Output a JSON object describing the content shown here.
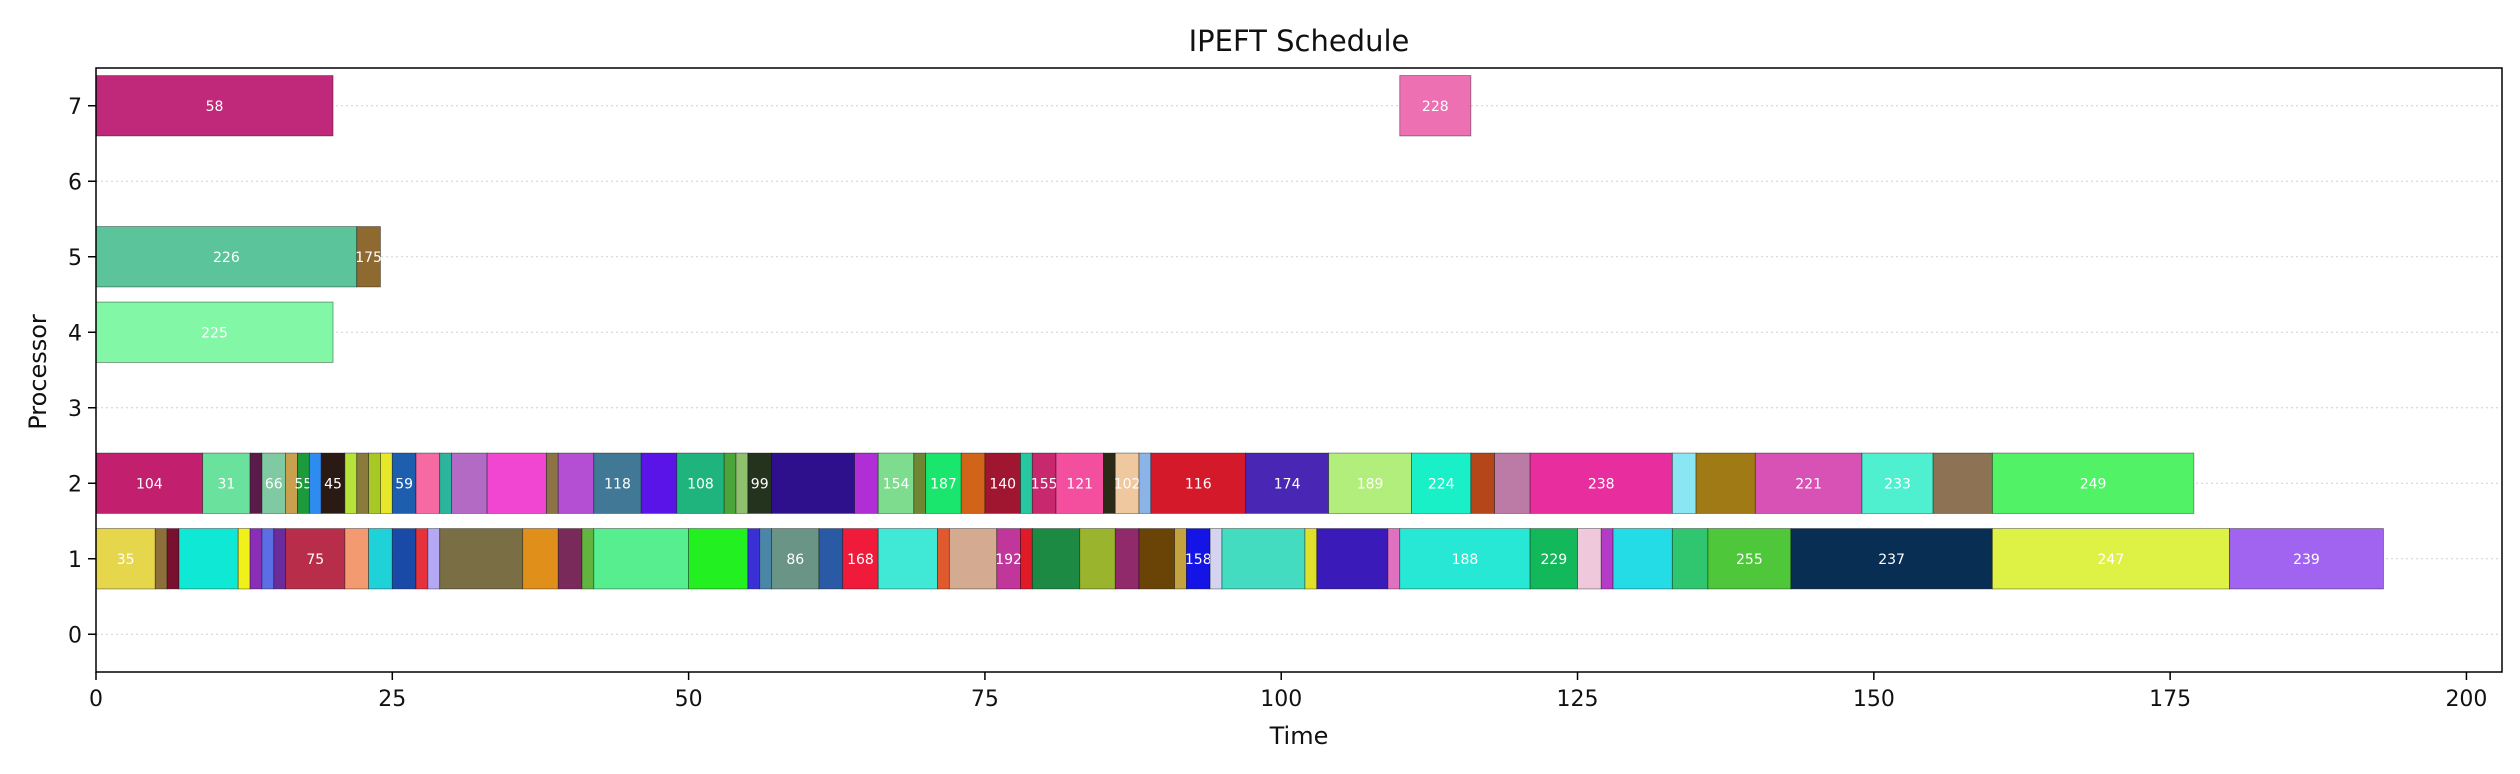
{
  "chart_data": {
    "type": "gantt",
    "title": "IPEFT Schedule",
    "xlabel": "Time",
    "ylabel": "Processor",
    "xlim": [
      0,
      203
    ],
    "ylim": [
      -0.5,
      7.5
    ],
    "xticks": [
      "0",
      "25",
      "50",
      "75",
      "100",
      "125",
      "150",
      "175",
      "200"
    ],
    "yticks": [
      "0",
      "1",
      "2",
      "3",
      "4",
      "5",
      "6",
      "7"
    ],
    "grid": "horizontal dotted",
    "tasks": [
      {
        "processor": 7,
        "start": 0,
        "end": 20,
        "label": "58",
        "color": "#c0287a"
      },
      {
        "processor": 7,
        "start": 110,
        "end": 116,
        "label": "228",
        "color": "#ec70b2"
      },
      {
        "processor": 5,
        "start": 0,
        "end": 22,
        "label": "226",
        "color": "#5bc49a"
      },
      {
        "processor": 5,
        "start": 22,
        "end": 24,
        "label": "175",
        "color": "#8e6930"
      },
      {
        "processor": 4,
        "start": 0,
        "end": 20,
        "label": "225",
        "color": "#82f7a6"
      },
      {
        "processor": 2,
        "start": 0,
        "end": 9,
        "label": "104",
        "color": "#c2206e"
      },
      {
        "processor": 2,
        "start": 9,
        "end": 13,
        "label": "31",
        "color": "#6be19e"
      },
      {
        "processor": 2,
        "start": 13,
        "end": 14,
        "label": "",
        "color": "#5a1a4a"
      },
      {
        "processor": 2,
        "start": 14,
        "end": 16,
        "label": "66",
        "color": "#7fc9a3"
      },
      {
        "processor": 2,
        "start": 16,
        "end": 17,
        "label": "",
        "color": "#c9a14e"
      },
      {
        "processor": 2,
        "start": 17,
        "end": 18,
        "label": "55",
        "color": "#1c9a3c"
      },
      {
        "processor": 2,
        "start": 18,
        "end": 19,
        "label": "",
        "color": "#2e8bf0"
      },
      {
        "processor": 2,
        "start": 19,
        "end": 21,
        "label": "45",
        "color": "#2b1a14"
      },
      {
        "processor": 2,
        "start": 21,
        "end": 22,
        "label": "",
        "color": "#b6e23a"
      },
      {
        "processor": 2,
        "start": 22,
        "end": 23,
        "label": "",
        "color": "#8a7a3c"
      },
      {
        "processor": 2,
        "start": 23,
        "end": 24,
        "label": "",
        "color": "#a8c826"
      },
      {
        "processor": 2,
        "start": 24,
        "end": 25,
        "label": "",
        "color": "#e7e829"
      },
      {
        "processor": 2,
        "start": 25,
        "end": 27,
        "label": "59",
        "color": "#1d5eae"
      },
      {
        "processor": 2,
        "start": 27,
        "end": 29,
        "label": "",
        "color": "#f56aa2"
      },
      {
        "processor": 2,
        "start": 29,
        "end": 30,
        "label": "",
        "color": "#2ab59c"
      },
      {
        "processor": 2,
        "start": 30,
        "end": 33,
        "label": "",
        "color": "#b36ac4"
      },
      {
        "processor": 2,
        "start": 33,
        "end": 38,
        "label": "",
        "color": "#f046d2"
      },
      {
        "processor": 2,
        "start": 38,
        "end": 39,
        "label": "",
        "color": "#8c7346"
      },
      {
        "processor": 2,
        "start": 39,
        "end": 42,
        "label": "",
        "color": "#b44ed2"
      },
      {
        "processor": 2,
        "start": 42,
        "end": 46,
        "label": "118",
        "color": "#417895"
      },
      {
        "processor": 2,
        "start": 46,
        "end": 49,
        "label": "",
        "color": "#5a14e8"
      },
      {
        "processor": 2,
        "start": 49,
        "end": 53,
        "label": "108",
        "color": "#1fb47e"
      },
      {
        "processor": 2,
        "start": 53,
        "end": 54,
        "label": "",
        "color": "#4aa63a"
      },
      {
        "processor": 2,
        "start": 54,
        "end": 55,
        "label": "",
        "color": "#8fc06e"
      },
      {
        "processor": 2,
        "start": 55,
        "end": 57,
        "label": "99",
        "color": "#24331e"
      },
      {
        "processor": 2,
        "start": 57,
        "end": 64,
        "label": "",
        "color": "#2e0f8c"
      },
      {
        "processor": 2,
        "start": 64,
        "end": 66,
        "label": "",
        "color": "#b02ed6"
      },
      {
        "processor": 2,
        "start": 66,
        "end": 69,
        "label": "154",
        "color": "#7ddc8e"
      },
      {
        "processor": 2,
        "start": 69,
        "end": 70,
        "label": "",
        "color": "#6e8732"
      },
      {
        "processor": 2,
        "start": 70,
        "end": 73,
        "label": "187",
        "color": "#1ae66e"
      },
      {
        "processor": 2,
        "start": 73,
        "end": 75,
        "label": "",
        "color": "#d2641a"
      },
      {
        "processor": 2,
        "start": 75,
        "end": 78,
        "label": "140",
        "color": "#a01630"
      },
      {
        "processor": 2,
        "start": 78,
        "end": 79,
        "label": "",
        "color": "#26c8a0"
      },
      {
        "processor": 2,
        "start": 79,
        "end": 81,
        "label": "155",
        "color": "#c8286e"
      },
      {
        "processor": 2,
        "start": 81,
        "end": 85,
        "label": "121",
        "color": "#f44e9e"
      },
      {
        "processor": 2,
        "start": 85,
        "end": 86,
        "label": "",
        "color": "#2a2a16"
      },
      {
        "processor": 2,
        "start": 86,
        "end": 88,
        "label": "102",
        "color": "#f0c8a0"
      },
      {
        "processor": 2,
        "start": 88,
        "end": 89,
        "label": "",
        "color": "#8ab4e8"
      },
      {
        "processor": 2,
        "start": 89,
        "end": 97,
        "label": "116",
        "color": "#d41a2a"
      },
      {
        "processor": 2,
        "start": 97,
        "end": 104,
        "label": "174",
        "color": "#4a26b4"
      },
      {
        "processor": 2,
        "start": 104,
        "end": 111,
        "label": "189",
        "color": "#b2ee7c"
      },
      {
        "processor": 2,
        "start": 111,
        "end": 116,
        "label": "224",
        "color": "#1af0c8"
      },
      {
        "processor": 2,
        "start": 116,
        "end": 118,
        "label": "",
        "color": "#b4461a"
      },
      {
        "processor": 2,
        "start": 118,
        "end": 121,
        "label": "",
        "color": "#bc7aa6"
      },
      {
        "processor": 2,
        "start": 121,
        "end": 133,
        "label": "238",
        "color": "#e82e9e"
      },
      {
        "processor": 2,
        "start": 133,
        "end": 135,
        "label": "",
        "color": "#8ae6f2"
      },
      {
        "processor": 2,
        "start": 135,
        "end": 140,
        "label": "",
        "color": "#a07a14"
      },
      {
        "processor": 2,
        "start": 140,
        "end": 149,
        "label": "221",
        "color": "#d852b6"
      },
      {
        "processor": 2,
        "start": 149,
        "end": 155,
        "label": "233",
        "color": "#4ef0d0"
      },
      {
        "processor": 2,
        "start": 155,
        "end": 160,
        "label": "",
        "color": "#8e7254"
      },
      {
        "processor": 2,
        "start": 160,
        "end": 177,
        "label": "249",
        "color": "#52f266"
      },
      {
        "processor": 1,
        "start": 0,
        "end": 5,
        "label": "35",
        "color": "#e6d64c"
      },
      {
        "processor": 1,
        "start": 5,
        "end": 6,
        "label": "",
        "color": "#8e6e3a"
      },
      {
        "processor": 1,
        "start": 6,
        "end": 7,
        "label": "",
        "color": "#7a1030"
      },
      {
        "processor": 1,
        "start": 7,
        "end": 12,
        "label": "",
        "color": "#0ee8d4"
      },
      {
        "processor": 1,
        "start": 12,
        "end": 13,
        "label": "",
        "color": "#f0f01a"
      },
      {
        "processor": 1,
        "start": 13,
        "end": 14,
        "label": "",
        "color": "#8a2eb8"
      },
      {
        "processor": 1,
        "start": 14,
        "end": 15,
        "label": "",
        "color": "#5c6ee6"
      },
      {
        "processor": 1,
        "start": 15,
        "end": 16,
        "label": "",
        "color": "#6a2c9c"
      },
      {
        "processor": 1,
        "start": 16,
        "end": 21,
        "label": "75",
        "color": "#b82e4a"
      },
      {
        "processor": 1,
        "start": 21,
        "end": 23,
        "label": "",
        "color": "#f49a70"
      },
      {
        "processor": 1,
        "start": 23,
        "end": 25,
        "label": "",
        "color": "#1ed2d8"
      },
      {
        "processor": 1,
        "start": 25,
        "end": 27,
        "label": "",
        "color": "#1a4aa8"
      },
      {
        "processor": 1,
        "start": 27,
        "end": 28,
        "label": "",
        "color": "#e6323c"
      },
      {
        "processor": 1,
        "start": 28,
        "end": 29,
        "label": "",
        "color": "#b4a8f4"
      },
      {
        "processor": 1,
        "start": 29,
        "end": 36,
        "label": "",
        "color": "#7a6e44"
      },
      {
        "processor": 1,
        "start": 36,
        "end": 39,
        "label": "",
        "color": "#e0901a"
      },
      {
        "processor": 1,
        "start": 39,
        "end": 41,
        "label": "",
        "color": "#7a2a5a"
      },
      {
        "processor": 1,
        "start": 41,
        "end": 42,
        "label": "",
        "color": "#62b43e"
      },
      {
        "processor": 1,
        "start": 42,
        "end": 50,
        "label": "",
        "color": "#56ee8e"
      },
      {
        "processor": 1,
        "start": 50,
        "end": 55,
        "label": "",
        "color": "#22f020"
      },
      {
        "processor": 1,
        "start": 55,
        "end": 56,
        "label": "",
        "color": "#3a30d6"
      },
      {
        "processor": 1,
        "start": 56,
        "end": 57,
        "label": "",
        "color": "#4a86a8"
      },
      {
        "processor": 1,
        "start": 57,
        "end": 61,
        "label": "86",
        "color": "#6a9486"
      },
      {
        "processor": 1,
        "start": 61,
        "end": 63,
        "label": "",
        "color": "#2a5aa6"
      },
      {
        "processor": 1,
        "start": 63,
        "end": 66,
        "label": "168",
        "color": "#f01a3a"
      },
      {
        "processor": 1,
        "start": 66,
        "end": 71,
        "label": "",
        "color": "#40e8d6"
      },
      {
        "processor": 1,
        "start": 71,
        "end": 72,
        "label": "",
        "color": "#e05a2e"
      },
      {
        "processor": 1,
        "start": 72,
        "end": 76,
        "label": "",
        "color": "#d4aa90"
      },
      {
        "processor": 1,
        "start": 76,
        "end": 78,
        "label": "192",
        "color": "#c0369a"
      },
      {
        "processor": 1,
        "start": 78,
        "end": 79,
        "label": "",
        "color": "#e01a26"
      },
      {
        "processor": 1,
        "start": 79,
        "end": 83,
        "label": "",
        "color": "#1c8a42"
      },
      {
        "processor": 1,
        "start": 83,
        "end": 86,
        "label": "",
        "color": "#9ab42e"
      },
      {
        "processor": 1,
        "start": 86,
        "end": 88,
        "label": "",
        "color": "#902a6a"
      },
      {
        "processor": 1,
        "start": 88,
        "end": 91,
        "label": "",
        "color": "#6a4406"
      },
      {
        "processor": 1,
        "start": 91,
        "end": 92,
        "label": "",
        "color": "#c4a240"
      },
      {
        "processor": 1,
        "start": 92,
        "end": 94,
        "label": "158",
        "color": "#1414e6"
      },
      {
        "processor": 1,
        "start": 94,
        "end": 95,
        "label": "",
        "color": "#d4d4f0"
      },
      {
        "processor": 1,
        "start": 95,
        "end": 102,
        "label": "",
        "color": "#44dcc0"
      },
      {
        "processor": 1,
        "start": 102,
        "end": 103,
        "label": "",
        "color": "#e0e02a"
      },
      {
        "processor": 1,
        "start": 103,
        "end": 109,
        "label": "",
        "color": "#3a1ab8"
      },
      {
        "processor": 1,
        "start": 109,
        "end": 110,
        "label": "",
        "color": "#e070c0"
      },
      {
        "processor": 1,
        "start": 110,
        "end": 121,
        "label": "188",
        "color": "#26e8d4"
      },
      {
        "processor": 1,
        "start": 121,
        "end": 125,
        "label": "229",
        "color": "#12b85a"
      },
      {
        "processor": 1,
        "start": 125,
        "end": 127,
        "label": "",
        "color": "#f0c8dc"
      },
      {
        "processor": 1,
        "start": 127,
        "end": 128,
        "label": "",
        "color": "#b43ac8"
      },
      {
        "processor": 1,
        "start": 128,
        "end": 133,
        "label": "",
        "color": "#24dce6"
      },
      {
        "processor": 1,
        "start": 133,
        "end": 136,
        "label": "",
        "color": "#30c670"
      },
      {
        "processor": 1,
        "start": 136,
        "end": 143,
        "label": "255",
        "color": "#4ec83a"
      },
      {
        "processor": 1,
        "start": 143,
        "end": 160,
        "label": "237",
        "color": "#082e54"
      },
      {
        "processor": 1,
        "start": 160,
        "end": 180,
        "label": "247",
        "color": "#def246"
      },
      {
        "processor": 1,
        "start": 180,
        "end": 193,
        "label": "239",
        "color": "#a064f0"
      }
    ]
  }
}
